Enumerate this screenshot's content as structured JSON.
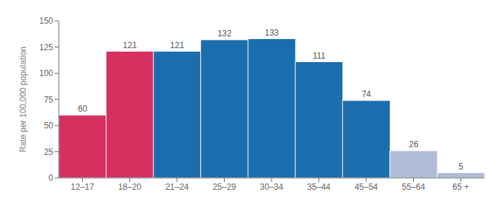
{
  "chart_data": {
    "type": "bar",
    "categories": [
      "12–17",
      "18–20",
      "21–24",
      "25–29",
      "30–34",
      "35–44",
      "45–54",
      "55–64",
      "65 +"
    ],
    "values": [
      60,
      121,
      121,
      132,
      133,
      111,
      74,
      26,
      5
    ],
    "colors": [
      "#d63060",
      "#d63060",
      "#1b6eae",
      "#1b6eae",
      "#1b6eae",
      "#1b6eae",
      "#1b6eae",
      "#b0bcd8",
      "#b0bcd8"
    ],
    "ylabel": "Rate per 100,000 population",
    "ylim": [
      0,
      150
    ],
    "yticks": [
      0,
      25,
      50,
      75,
      100,
      125,
      150
    ],
    "data_labels": true,
    "grid": false
  }
}
